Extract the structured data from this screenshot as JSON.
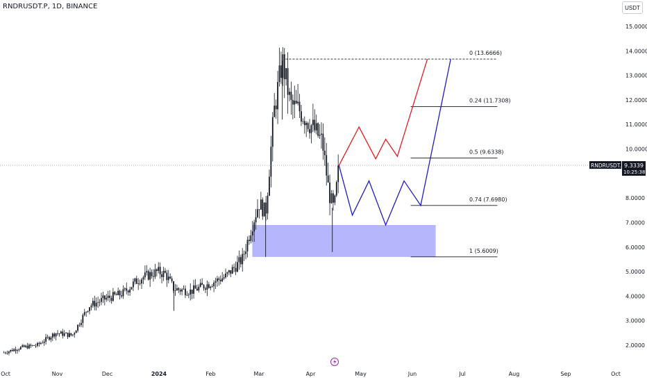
{
  "header": {
    "symbol_title": "RNDRUSDT.P, 1D, BINANCE",
    "currency_button": "USDT"
  },
  "price_tag": {
    "symbol": "RNDRUSDT.P",
    "price": "9.3339",
    "countdown": "10:25:38"
  },
  "colors": {
    "candle": "#131722",
    "zone": "#aeaefc",
    "path_up": "#e11d1d",
    "path_down": "#1d1dbf",
    "fib_line": "#131722",
    "price_line": "#787b86",
    "event_icon": "#9c27b0"
  },
  "chart_data": {
    "type": "candlestick",
    "ylim": [
      1.5,
      15.3
    ],
    "y_ticks": [
      "15.0000",
      "14.0000",
      "13.0000",
      "12.0000",
      "11.0000",
      "10.0000",
      "9.0000",
      "8.0000",
      "7.0000",
      "6.0000",
      "5.0000",
      "4.0000",
      "3.0000",
      "2.0000"
    ],
    "x_ticks": [
      {
        "label": "Oct",
        "bold": false
      },
      {
        "label": "Nov",
        "bold": false
      },
      {
        "label": "Dec",
        "bold": false
      },
      {
        "label": "2024",
        "bold": true
      },
      {
        "label": "Feb",
        "bold": false
      },
      {
        "label": "Mar",
        "bold": false
      },
      {
        "label": "Apr",
        "bold": false
      },
      {
        "label": "May",
        "bold": false
      },
      {
        "label": "Jun",
        "bold": false
      },
      {
        "label": "Jul",
        "bold": false
      },
      {
        "label": "Aug",
        "bold": false
      },
      {
        "label": "Sep",
        "bold": false
      },
      {
        "label": "Oct",
        "bold": false
      }
    ],
    "price_path": [
      [
        "2023-09-30",
        1.7
      ],
      [
        "2023-10-10",
        1.9
      ],
      [
        "2023-10-20",
        2.0
      ],
      [
        "2023-10-31",
        2.5
      ],
      [
        "2023-11-10",
        2.4
      ],
      [
        "2023-11-20",
        3.6
      ],
      [
        "2023-11-30",
        3.9
      ],
      [
        "2023-12-10",
        4.1
      ],
      [
        "2023-12-20",
        4.7
      ],
      [
        "2023-12-31",
        5.0
      ],
      [
        "2024-01-05",
        4.9
      ],
      [
        "2024-01-10",
        4.3
      ],
      [
        "2024-01-20",
        4.2
      ],
      [
        "2024-01-31",
        4.5
      ],
      [
        "2024-02-10",
        4.8
      ],
      [
        "2024-02-20",
        5.5
      ],
      [
        "2024-02-25",
        6.7
      ],
      [
        "2024-03-01",
        7.8
      ],
      [
        "2024-03-05",
        7.4
      ],
      [
        "2024-03-10",
        11.5
      ],
      [
        "2024-03-15",
        13.6
      ],
      [
        "2024-03-20",
        11.8
      ],
      [
        "2024-03-25",
        11.6
      ],
      [
        "2024-04-01",
        11.0
      ],
      [
        "2024-04-08",
        10.3
      ],
      [
        "2024-04-12",
        8.2
      ],
      [
        "2024-04-15",
        7.5
      ],
      [
        "2024-04-18",
        9.33
      ]
    ],
    "demand_zone": {
      "x_from": "2024-02-26",
      "x_to": "2024-06-15",
      "y_from": 5.6,
      "y_to": 6.9
    },
    "fib_levels": [
      {
        "ratio": "0",
        "value": 13.6666,
        "label": "0 (13.6666)",
        "x_from": "2024-03-17",
        "x_to": "2024-07-22"
      },
      {
        "ratio": "0.24",
        "value": 11.7308,
        "label": "0.24 (11.7308)",
        "x_from": "2024-05-31",
        "x_to": "2024-07-22"
      },
      {
        "ratio": "0.5",
        "value": 9.6338,
        "label": "0.5 (9.6338)",
        "x_from": "2024-05-31",
        "x_to": "2024-07-22"
      },
      {
        "ratio": "0.74",
        "value": 7.698,
        "label": "0.74 (7.6980)",
        "x_from": "2024-05-31",
        "x_to": "2024-07-22"
      },
      {
        "ratio": "1",
        "value": 5.6009,
        "label": "1 (5.6009)",
        "x_from": "2024-05-31",
        "x_to": "2024-07-22"
      }
    ],
    "projection_up": [
      [
        "2024-04-18",
        9.33
      ],
      [
        "2024-04-30",
        10.9
      ],
      [
        "2024-05-10",
        9.6
      ],
      [
        "2024-05-16",
        10.4
      ],
      [
        "2024-05-23",
        9.7
      ],
      [
        "2024-06-10",
        13.6666
      ]
    ],
    "projection_down": [
      [
        "2024-04-18",
        9.33
      ],
      [
        "2024-04-26",
        7.3
      ],
      [
        "2024-05-06",
        8.7
      ],
      [
        "2024-05-16",
        6.9
      ],
      [
        "2024-05-27",
        8.7
      ],
      [
        "2024-06-06",
        7.7
      ],
      [
        "2024-06-24",
        13.6666
      ]
    ],
    "current_price": 9.3339
  }
}
